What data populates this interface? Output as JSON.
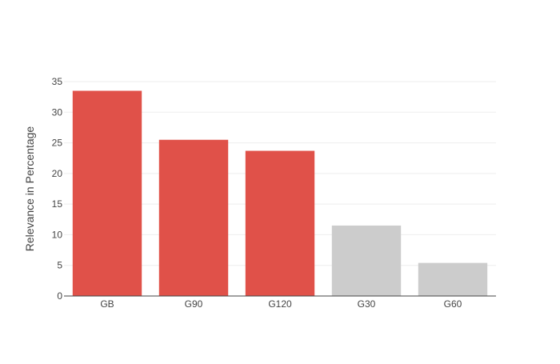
{
  "chart_data": {
    "type": "bar",
    "categories": [
      "GB",
      "G90",
      "G120",
      "G30",
      "G60"
    ],
    "values": [
      33.5,
      25.5,
      23.7,
      11.5,
      5.4
    ],
    "bar_colors": [
      "#e05149",
      "#e05149",
      "#e05149",
      "#cccccc",
      "#cccccc"
    ],
    "ylabel": "Relevance in Percentage",
    "ylim": [
      0,
      35
    ],
    "yticks": [
      0,
      5,
      10,
      15,
      20,
      25,
      30,
      35
    ],
    "grid": true,
    "grid_color": "#eeeeee",
    "axis_color": "#444444"
  }
}
